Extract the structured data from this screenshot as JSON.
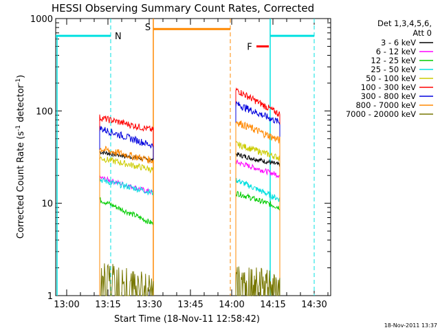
{
  "chart_data": {
    "type": "line",
    "title": "HESSI Observing Summary Count Rates, Corrected",
    "xlabel": "Start Time (18-Nov-11 12:58:42)",
    "ylabel": "Corrected Count Rate (s",
    "ylabel_sup1": "-1",
    "ylabel_mid": " detector",
    "ylabel_sup2": "-1",
    "ylabel_end": ")",
    "yscale": "log",
    "ylim": [
      1,
      1000
    ],
    "xlim_minutes": [
      -4,
      96
    ],
    "x_ticks": [
      {
        "m": 0,
        "label": "13:00"
      },
      {
        "m": 15,
        "label": "13:15"
      },
      {
        "m": 30,
        "label": "13:30"
      },
      {
        "m": 45,
        "label": "13:45"
      },
      {
        "m": 60,
        "label": "14:00"
      },
      {
        "m": 75,
        "label": "14:15"
      },
      {
        "m": 90,
        "label": "14:30"
      }
    ],
    "y_ticks": [
      {
        "v": 1,
        "label": "1"
      },
      {
        "v": 10,
        "label": "10"
      },
      {
        "v": 100,
        "label": "100"
      },
      {
        "v": 1000,
        "label": "1000"
      }
    ],
    "legend": {
      "header1": "Det 1,3,4,5,6,",
      "header2": "Att 0",
      "placement": "right"
    },
    "series": [
      {
        "name": "3 - 6 keV",
        "color": "#000000",
        "seg1": [
          36,
          29
        ],
        "seg2": [
          34,
          26
        ]
      },
      {
        "name": "6 - 12 keV",
        "color": "#ff00ff",
        "seg1": [
          19,
          13
        ],
        "seg2": [
          28,
          20
        ]
      },
      {
        "name": "12 - 25 keV",
        "color": "#00cc00",
        "seg1": [
          11,
          6
        ],
        "seg2": [
          13,
          9
        ]
      },
      {
        "name": "25 - 50 keV",
        "color": "#00e0e0",
        "seg1": [
          18,
          13
        ],
        "seg2": [
          18,
          11
        ]
      },
      {
        "name": "50 - 100 keV",
        "color": "#cccc00",
        "seg1": [
          31,
          23
        ],
        "seg2": [
          44,
          31
        ]
      },
      {
        "name": "100 - 300 keV",
        "color": "#ff0000",
        "seg1": [
          85,
          62
        ],
        "seg2": [
          170,
          92
        ]
      },
      {
        "name": "300 - 800 keV",
        "color": "#0000dd",
        "seg1": [
          65,
          42
        ],
        "seg2": [
          120,
          75
        ]
      },
      {
        "name": "800 - 7000 keV",
        "color": "#ff8800",
        "seg1": [
          39,
          29
        ],
        "seg2": [
          77,
          48
        ]
      },
      {
        "name": "7000 - 20000 keV",
        "color": "#777700",
        "seg1": [
          1.9,
          1.4
        ],
        "seg2": [
          1.9,
          1.4
        ]
      }
    ],
    "segments": [
      {
        "start": 12,
        "end": 31.5
      },
      {
        "start": 61.5,
        "end": 77.5
      }
    ],
    "annotations": [
      {
        "label": "N",
        "color": "#00e0e0",
        "x_start": -4,
        "x_end": 16,
        "y": 650
      },
      {
        "label": "N",
        "color": "#00e0e0",
        "x_start": 74,
        "x_end": 90,
        "y": 650
      },
      {
        "label": "S",
        "color": "#ff8800",
        "x_start": 31.5,
        "x_end": 59.5,
        "y": 770
      },
      {
        "label": "F",
        "color": "#ff0000",
        "x_start": 69,
        "x_end": 73.5,
        "y": 500
      }
    ],
    "label_N": "N",
    "label_S": "S",
    "label_F": "F",
    "timestamp": "18-Nov-2011 13:37"
  }
}
